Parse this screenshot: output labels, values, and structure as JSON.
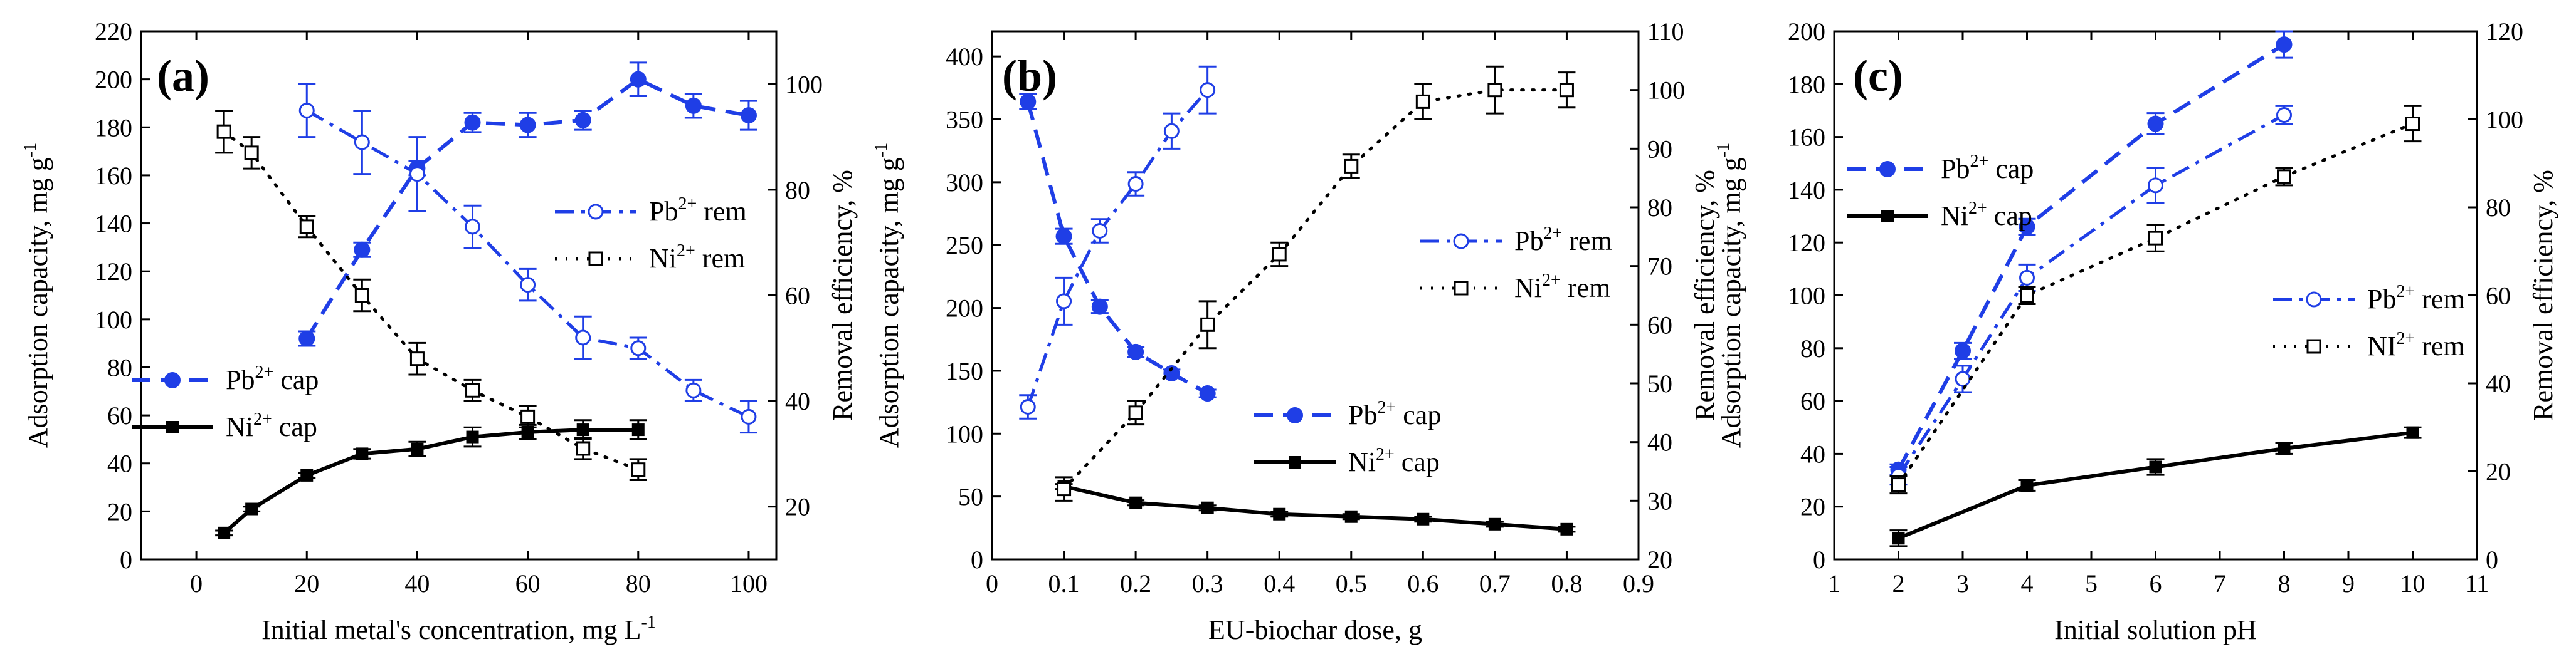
{
  "colors": {
    "pb": "#1f3ee6",
    "ni": "#000000",
    "frame": "#000000"
  },
  "chart_data": [
    {
      "type": "line",
      "panel_label": "(a)",
      "xlabel": "Initial metal's concentration, mg L",
      "xlabel_sup": "-1",
      "ylabel_left": "Adsorption capacity, mg g",
      "ylabel_left_sup": "-1",
      "ylabel_right": "Removal efficiency, %",
      "xlim": [
        -10,
        105
      ],
      "ylim_left": [
        0,
        220
      ],
      "ylim_right": [
        10,
        110
      ],
      "xticks": [
        0,
        20,
        40,
        60,
        80,
        100
      ],
      "yticks_left": [
        0,
        20,
        40,
        60,
        80,
        100,
        120,
        140,
        160,
        180,
        200,
        220
      ],
      "yticks_right": [
        20,
        40,
        60,
        80,
        100
      ],
      "series": [
        {
          "name": "Pb",
          "sup": "2+",
          "suffix": " cap",
          "axis": "left",
          "style": "pb-cap",
          "x": [
            20,
            30,
            40,
            50,
            60,
            70,
            80,
            90,
            100
          ],
          "y": [
            92,
            129,
            163,
            182,
            181,
            183,
            200,
            189,
            185
          ],
          "err": [
            3,
            3,
            3,
            4,
            5,
            4,
            7,
            5,
            6
          ]
        },
        {
          "name": "Ni",
          "sup": "2+",
          "suffix": " cap",
          "axis": "left",
          "style": "ni-cap",
          "x": [
            5,
            10,
            20,
            30,
            40,
            50,
            60,
            70,
            80
          ],
          "y": [
            11,
            21,
            35,
            44,
            46,
            51,
            53,
            54,
            54
          ],
          "err": [
            1,
            1,
            1,
            2,
            3,
            4,
            3,
            4,
            4
          ]
        },
        {
          "name": "Pb",
          "sup": "2+",
          "suffix": " rem",
          "axis": "right",
          "style": "pb-rem",
          "x": [
            20,
            30,
            40,
            50,
            60,
            70,
            80,
            90,
            100
          ],
          "y": [
            95,
            89,
            83,
            73,
            62,
            52,
            50,
            42,
            37
          ],
          "err": [
            5,
            6,
            7,
            4,
            3,
            4,
            2,
            2,
            3
          ]
        },
        {
          "name": "Ni",
          "sup": "2+",
          "suffix": " rem",
          "axis": "right",
          "style": "ni-rem",
          "x": [
            5,
            10,
            20,
            30,
            40,
            50,
            60,
            70,
            80
          ],
          "y": [
            91,
            87,
            73,
            60,
            48,
            42,
            37,
            31,
            27
          ],
          "err": [
            4,
            3,
            2,
            3,
            3,
            2,
            2,
            2,
            2
          ]
        }
      ],
      "legend_upper": [
        "pb-rem",
        "ni-rem"
      ],
      "legend_lower": [
        "pb-cap",
        "ni-cap"
      ]
    },
    {
      "type": "line",
      "panel_label": "(b)",
      "xlabel": "EU-biochar dose, g",
      "xlabel_sup": "",
      "ylabel_left": "Adsorption capacity, mg g",
      "ylabel_left_sup": "-1",
      "ylabel_right": "Removal efficiency, %",
      "xlim": [
        0.0,
        0.9
      ],
      "ylim_left": [
        0,
        420
      ],
      "ylim_right": [
        20,
        110
      ],
      "xticks": [
        0.0,
        0.1,
        0.2,
        0.3,
        0.4,
        0.5,
        0.6,
        0.7,
        0.8,
        0.9
      ],
      "yticks_left": [
        0,
        50,
        100,
        150,
        200,
        250,
        300,
        350,
        400
      ],
      "yticks_right": [
        20,
        30,
        40,
        50,
        60,
        70,
        80,
        90,
        100,
        110
      ],
      "series": [
        {
          "name": "Pb",
          "sup": "2+",
          "suffix": " cap",
          "axis": "left",
          "style": "pb-cap",
          "x": [
            0.05,
            0.1,
            0.15,
            0.2,
            0.25,
            0.3
          ],
          "y": [
            364,
            257,
            201,
            165,
            148,
            132
          ],
          "err": [
            6,
            6,
            5,
            4,
            3,
            3
          ]
        },
        {
          "name": "Ni",
          "sup": "2+",
          "suffix": " cap",
          "axis": "left",
          "style": "ni-cap",
          "x": [
            0.1,
            0.2,
            0.3,
            0.4,
            0.5,
            0.6,
            0.7,
            0.8
          ],
          "y": [
            58,
            45,
            41,
            36,
            34,
            32,
            28,
            24
          ],
          "err": [
            2,
            2,
            2,
            2,
            2,
            2,
            2,
            2
          ]
        },
        {
          "name": "Pb",
          "sup": "2+",
          "suffix": " rem",
          "axis": "right",
          "style": "pb-rem",
          "x": [
            0.05,
            0.1,
            0.15,
            0.2,
            0.25,
            0.3
          ],
          "y": [
            46,
            64,
            76,
            84,
            93,
            100
          ],
          "err": [
            2,
            4,
            2,
            2,
            3,
            4
          ]
        },
        {
          "name": "Ni",
          "sup": "2+",
          "suffix": " rem",
          "axis": "right",
          "style": "ni-rem",
          "x": [
            0.1,
            0.2,
            0.3,
            0.4,
            0.5,
            0.6,
            0.7,
            0.8
          ],
          "y": [
            32,
            45,
            60,
            72,
            87,
            98,
            100,
            100
          ],
          "err": [
            2,
            2,
            4,
            2,
            2,
            3,
            4,
            3
          ]
        }
      ],
      "legend_upper": [
        "pb-rem",
        "ni-rem"
      ],
      "legend_lower": [
        "pb-cap",
        "ni-cap"
      ]
    },
    {
      "type": "line",
      "panel_label": "(c)",
      "xlabel": "Initial solution pH",
      "xlabel_sup": "",
      "ylabel_left": "Adsorption capacity, mg g",
      "ylabel_left_sup": "-1",
      "ylabel_right": "Removal efficiency, %",
      "xlim": [
        1,
        11
      ],
      "ylim_left": [
        0,
        200
      ],
      "ylim_right": [
        0,
        120
      ],
      "xticks": [
        1,
        2,
        3,
        4,
        5,
        6,
        7,
        8,
        9,
        10,
        11
      ],
      "yticks_left": [
        0,
        20,
        40,
        60,
        80,
        100,
        120,
        140,
        160,
        180,
        200
      ],
      "yticks_right": [
        0,
        20,
        40,
        60,
        80,
        100,
        120
      ],
      "series": [
        {
          "name": "Pb",
          "sup": "2+",
          "suffix": " cap",
          "axis": "left",
          "style": "pb-cap",
          "x": [
            2,
            3,
            4,
            6,
            8
          ],
          "y": [
            34,
            79,
            126,
            165,
            195
          ],
          "err": [
            2,
            3,
            3,
            4,
            5
          ]
        },
        {
          "name": "Ni",
          "sup": "2+",
          "suffix": " cap",
          "axis": "left",
          "style": "ni-cap",
          "x": [
            2,
            4,
            6,
            8,
            10
          ],
          "y": [
            8,
            28,
            35,
            42,
            48
          ],
          "err": [
            3,
            2,
            3,
            2,
            2
          ]
        },
        {
          "name": "Pb",
          "sup": "2+",
          "suffix": " rem",
          "axis": "right",
          "style": "pb-rem",
          "x": [
            2,
            3,
            4,
            6,
            8
          ],
          "y": [
            19,
            41,
            64,
            85,
            101
          ],
          "err": [
            2,
            3,
            3,
            4,
            2
          ]
        },
        {
          "name": "NI",
          "sup": "2+",
          "suffix": " rem",
          "axis": "right",
          "style": "ni-rem",
          "x": [
            2,
            4,
            6,
            8,
            10
          ],
          "y": [
            17,
            60,
            73,
            87,
            99
          ],
          "err": [
            2,
            2,
            3,
            2,
            4
          ]
        }
      ],
      "legend_upper": [
        "pb-cap",
        "ni-cap"
      ],
      "legend_lower": [
        "pb-rem",
        "ni-rem"
      ]
    }
  ]
}
